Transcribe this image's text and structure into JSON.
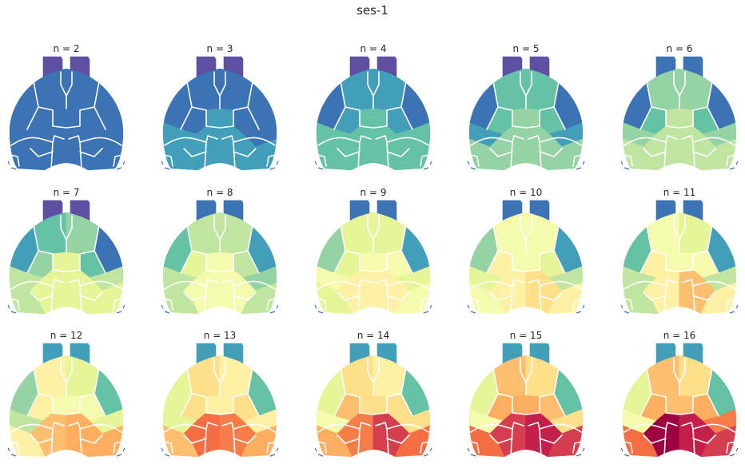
{
  "figure": {
    "title": "ses-1",
    "panels": [
      {
        "label": "n = 2",
        "n": 2
      },
      {
        "label": "n = 3",
        "n": 3
      },
      {
        "label": "n = 4",
        "n": 4
      },
      {
        "label": "n = 5",
        "n": 5
      },
      {
        "label": "n = 6",
        "n": 6
      },
      {
        "label": "n = 7",
        "n": 7
      },
      {
        "label": "n = 8",
        "n": 8
      },
      {
        "label": "n = 9",
        "n": 9
      },
      {
        "label": "n = 10",
        "n": 10
      },
      {
        "label": "n = 11",
        "n": 11
      },
      {
        "label": "n = 12",
        "n": 12
      },
      {
        "label": "n = 13",
        "n": 13
      },
      {
        "label": "n = 14",
        "n": 14
      },
      {
        "label": "n = 15",
        "n": 15
      },
      {
        "label": "n = 16",
        "n": 16
      }
    ],
    "colormap": "Spectral_r",
    "palette": [
      "#5e4fa2",
      "#3b73b4",
      "#439fb9",
      "#66c2a5",
      "#95d3a4",
      "#bfe5a0",
      "#e6f598",
      "#f6faad",
      "#fef0a5",
      "#fee08b",
      "#fdbf6f",
      "#fdae61",
      "#f67c4a",
      "#f46d43",
      "#d53e4f",
      "#c41f4b",
      "#9e0142"
    ],
    "separator_color": "#ffffff"
  }
}
